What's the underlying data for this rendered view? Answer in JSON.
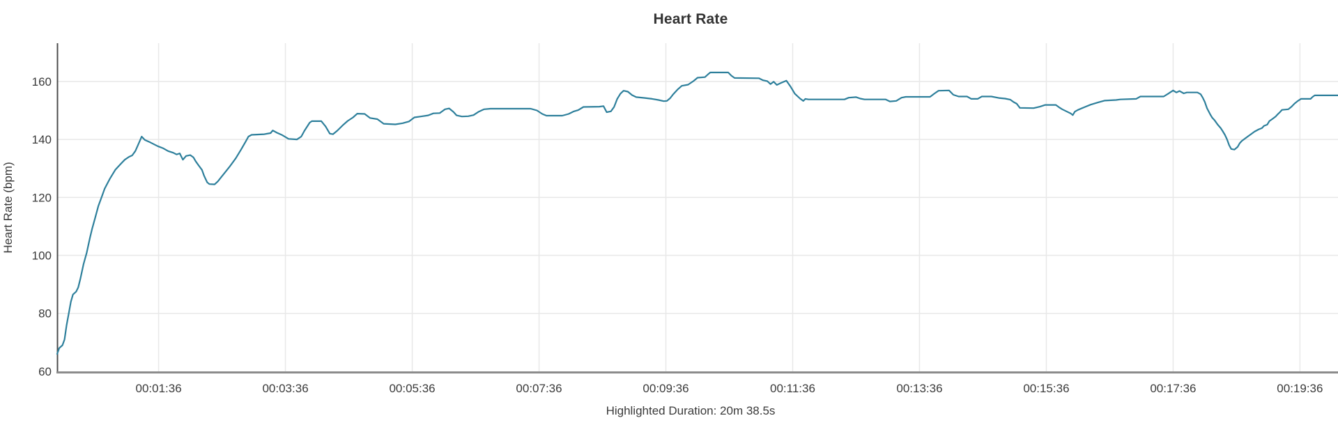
{
  "chart": {
    "title": "Heart Rate",
    "ylabel": "Heart Rate (bpm)",
    "annotation": "Highlighted Duration: 20m 38.5s"
  },
  "colors": {
    "line": "#2d7f9b",
    "grid": "#e8e8e8",
    "axis_left": "#4c4c4c",
    "axis_bottom": "#8c8c8c",
    "text": "#333333",
    "tick_text": "#3a3a3a",
    "background": "#ffffff"
  },
  "chart_data": {
    "type": "line",
    "title": "Heart Rate",
    "xlabel": "",
    "ylabel": "Heart Rate (bpm)",
    "annotation": "Highlighted Duration: 20m 38.5s",
    "legend": "none",
    "grid": true,
    "x_unit": "time (hh:mm:ss)",
    "xlim_seconds": [
      0,
      1212
    ],
    "ylim": [
      59.5,
      173.2
    ],
    "x_ticks": [
      {
        "label": "00:01:36",
        "seconds": 96
      },
      {
        "label": "00:03:36",
        "seconds": 216
      },
      {
        "label": "00:05:36",
        "seconds": 336
      },
      {
        "label": "00:07:36",
        "seconds": 456
      },
      {
        "label": "00:09:36",
        "seconds": 576
      },
      {
        "label": "00:11:36",
        "seconds": 696
      },
      {
        "label": "00:13:36",
        "seconds": 816
      },
      {
        "label": "00:15:36",
        "seconds": 936
      },
      {
        "label": "00:17:36",
        "seconds": 1056
      },
      {
        "label": "00:19:36",
        "seconds": 1176
      }
    ],
    "y_ticks": [
      60,
      80,
      100,
      120,
      140,
      160
    ],
    "series": [
      {
        "name": "Heart Rate (bpm)",
        "points": [
          [
            0,
            66
          ],
          [
            2,
            68
          ],
          [
            5,
            69
          ],
          [
            7,
            71
          ],
          [
            9,
            76
          ],
          [
            11,
            80
          ],
          [
            13,
            84
          ],
          [
            15,
            86.5
          ],
          [
            18,
            87.5
          ],
          [
            20,
            89
          ],
          [
            22,
            92
          ],
          [
            25,
            97
          ],
          [
            28,
            101
          ],
          [
            31,
            106
          ],
          [
            33,
            109
          ],
          [
            36,
            113
          ],
          [
            39,
            117
          ],
          [
            42,
            120
          ],
          [
            45,
            123
          ],
          [
            50,
            126.5
          ],
          [
            55,
            129.5
          ],
          [
            60,
            131.5
          ],
          [
            64,
            133
          ],
          [
            68,
            134
          ],
          [
            71,
            134.5
          ],
          [
            74,
            136
          ],
          [
            77,
            138.5
          ],
          [
            80,
            141
          ],
          [
            83,
            139.8
          ],
          [
            88,
            139
          ],
          [
            95,
            137.7
          ],
          [
            100,
            137
          ],
          [
            105,
            136
          ],
          [
            110,
            135.4
          ],
          [
            113,
            134.8
          ],
          [
            116,
            135.2
          ],
          [
            119,
            133
          ],
          [
            122,
            134.3
          ],
          [
            126,
            134.6
          ],
          [
            129,
            133.8
          ],
          [
            131,
            132.5
          ],
          [
            134,
            131
          ],
          [
            137,
            129.5
          ],
          [
            139,
            127.5
          ],
          [
            142,
            125.2
          ],
          [
            144,
            124.6
          ],
          [
            149,
            124.5
          ],
          [
            152,
            125.5
          ],
          [
            157,
            127.8
          ],
          [
            163,
            130.5
          ],
          [
            169,
            133.5
          ],
          [
            174,
            136.5
          ],
          [
            178,
            139
          ],
          [
            181,
            141
          ],
          [
            184,
            141.6
          ],
          [
            196,
            141.8
          ],
          [
            202,
            142.2
          ],
          [
            204,
            143.1
          ],
          [
            208,
            142.3
          ],
          [
            213,
            141.5
          ],
          [
            219,
            140.2
          ],
          [
            227,
            140
          ],
          [
            231,
            141
          ],
          [
            234,
            143
          ],
          [
            239,
            145.8
          ],
          [
            241,
            146.3
          ],
          [
            250,
            146.3
          ],
          [
            254,
            144.5
          ],
          [
            258,
            142
          ],
          [
            261,
            141.8
          ],
          [
            265,
            143
          ],
          [
            270,
            144.8
          ],
          [
            275,
            146.4
          ],
          [
            280,
            147.6
          ],
          [
            284,
            148.9
          ],
          [
            291,
            148.8
          ],
          [
            296,
            147.4
          ],
          [
            303,
            147
          ],
          [
            309,
            145.4
          ],
          [
            320,
            145.2
          ],
          [
            327,
            145.6
          ],
          [
            333,
            146.2
          ],
          [
            338,
            147.6
          ],
          [
            344,
            147.9
          ],
          [
            351,
            148.3
          ],
          [
            356,
            149
          ],
          [
            362,
            149.1
          ],
          [
            367,
            150.4
          ],
          [
            371,
            150.7
          ],
          [
            375,
            149.5
          ],
          [
            378,
            148.3
          ],
          [
            383,
            147.9
          ],
          [
            389,
            148
          ],
          [
            394,
            148.4
          ],
          [
            399,
            149.6
          ],
          [
            404,
            150.4
          ],
          [
            410,
            150.6
          ],
          [
            448,
            150.6
          ],
          [
            454,
            150
          ],
          [
            459,
            148.8
          ],
          [
            463,
            148.2
          ],
          [
            478,
            148.2
          ],
          [
            484,
            148.8
          ],
          [
            489,
            149.7
          ],
          [
            493,
            150.1
          ],
          [
            498,
            151.2
          ],
          [
            513,
            151.3
          ],
          [
            517,
            151.5
          ],
          [
            520,
            149.4
          ],
          [
            524,
            149.7
          ],
          [
            527,
            151.2
          ],
          [
            530,
            154
          ],
          [
            533,
            155.8
          ],
          [
            536,
            156.8
          ],
          [
            540,
            156.5
          ],
          [
            544,
            155.3
          ],
          [
            548,
            154.6
          ],
          [
            556,
            154.3
          ],
          [
            563,
            154
          ],
          [
            569,
            153.6
          ],
          [
            574,
            153.2
          ],
          [
            577,
            153.3
          ],
          [
            580,
            154.2
          ],
          [
            583,
            155.6
          ],
          [
            587,
            157.2
          ],
          [
            591,
            158.5
          ],
          [
            597,
            158.9
          ],
          [
            602,
            160.1
          ],
          [
            606,
            161.3
          ],
          [
            613,
            161.5
          ],
          [
            616,
            162.5
          ],
          [
            618,
            163.1
          ],
          [
            635,
            163.1
          ],
          [
            638,
            162
          ],
          [
            641,
            161.2
          ],
          [
            664,
            161.1
          ],
          [
            668,
            160.4
          ],
          [
            672,
            160.1
          ],
          [
            675,
            159.1
          ],
          [
            678,
            159.9
          ],
          [
            681,
            158.8
          ],
          [
            685,
            159.5
          ],
          [
            690,
            160.3
          ],
          [
            694,
            158.2
          ],
          [
            698,
            155.8
          ],
          [
            703,
            154.1
          ],
          [
            706,
            153.3
          ],
          [
            708,
            154
          ],
          [
            711,
            153.8
          ],
          [
            745,
            153.8
          ],
          [
            749,
            154.4
          ],
          [
            756,
            154.6
          ],
          [
            760,
            154.1
          ],
          [
            764,
            153.8
          ],
          [
            784,
            153.8
          ],
          [
            788,
            153.1
          ],
          [
            794,
            153.3
          ],
          [
            799,
            154.4
          ],
          [
            803,
            154.7
          ],
          [
            826,
            154.7
          ],
          [
            830,
            155.8
          ],
          [
            834,
            156.8
          ],
          [
            844,
            156.9
          ],
          [
            848,
            155.4
          ],
          [
            853,
            154.8
          ],
          [
            861,
            154.8
          ],
          [
            865,
            154
          ],
          [
            871,
            154
          ],
          [
            875,
            154.8
          ],
          [
            884,
            154.8
          ],
          [
            891,
            154.3
          ],
          [
            897,
            154.1
          ],
          [
            902,
            153.7
          ],
          [
            905,
            152.9
          ],
          [
            908,
            152.3
          ],
          [
            911,
            150.9
          ],
          [
            924,
            150.8
          ],
          [
            930,
            151.3
          ],
          [
            935,
            151.9
          ],
          [
            945,
            151.9
          ],
          [
            948,
            151.1
          ],
          [
            951,
            150.4
          ],
          [
            955,
            149.7
          ],
          [
            959,
            149
          ],
          [
            961,
            148.4
          ],
          [
            963,
            149.6
          ],
          [
            966,
            150.2
          ],
          [
            972,
            151.1
          ],
          [
            978,
            152
          ],
          [
            985,
            152.8
          ],
          [
            991,
            153.4
          ],
          [
            1002,
            153.6
          ],
          [
            1006,
            153.8
          ],
          [
            1021,
            154
          ],
          [
            1025,
            154.8
          ],
          [
            1047,
            154.8
          ],
          [
            1051,
            155.7
          ],
          [
            1056,
            156.9
          ],
          [
            1059,
            156.2
          ],
          [
            1062,
            156.7
          ],
          [
            1066,
            155.9
          ],
          [
            1069,
            156.2
          ],
          [
            1079,
            156.2
          ],
          [
            1082,
            155.6
          ],
          [
            1084,
            154.4
          ],
          [
            1086,
            152.9
          ],
          [
            1088,
            150.8
          ],
          [
            1091,
            148.7
          ],
          [
            1093,
            147.5
          ],
          [
            1095,
            146.7
          ],
          [
            1098,
            145.2
          ],
          [
            1101,
            143.9
          ],
          [
            1103,
            142.8
          ],
          [
            1105,
            141.6
          ],
          [
            1107,
            140
          ],
          [
            1109,
            138
          ],
          [
            1111,
            136.7
          ],
          [
            1114,
            136.5
          ],
          [
            1117,
            137.4
          ],
          [
            1119,
            138.7
          ],
          [
            1121,
            139.5
          ],
          [
            1124,
            140.3
          ],
          [
            1127,
            141.1
          ],
          [
            1130,
            141.9
          ],
          [
            1133,
            142.7
          ],
          [
            1137,
            143.5
          ],
          [
            1140,
            143.9
          ],
          [
            1142,
            144.7
          ],
          [
            1145,
            145.1
          ],
          [
            1147,
            146.3
          ],
          [
            1150,
            147.1
          ],
          [
            1153,
            147.9
          ],
          [
            1155,
            148.7
          ],
          [
            1157,
            149.4
          ],
          [
            1159,
            150.2
          ],
          [
            1165,
            150.4
          ],
          [
            1168,
            151.3
          ],
          [
            1171,
            152.4
          ],
          [
            1174,
            153.3
          ],
          [
            1177,
            154
          ],
          [
            1186,
            154
          ],
          [
            1188,
            154.7
          ],
          [
            1190,
            155.2
          ],
          [
            1212,
            155.2
          ]
        ]
      }
    ]
  }
}
